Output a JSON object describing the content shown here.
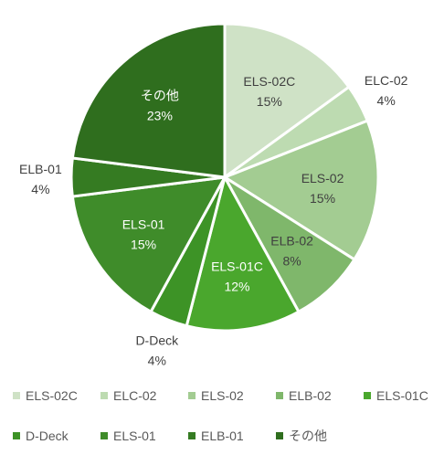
{
  "chart_data": {
    "type": "pie",
    "title": "",
    "series": [
      {
        "name": "ELS-02C",
        "value": 15,
        "label": "15%",
        "color": "#cfe2c6"
      },
      {
        "name": "ELC-02",
        "value": 4,
        "label": "4%",
        "color": "#bddbb1"
      },
      {
        "name": "ELS-02",
        "value": 15,
        "label": "15%",
        "color": "#a3cc92"
      },
      {
        "name": "ELB-02",
        "value": 8,
        "label": "8%",
        "color": "#7fb76b"
      },
      {
        "name": "ELS-01C",
        "value": 12,
        "label": "12%",
        "color": "#4aa72d"
      },
      {
        "name": "D-Deck",
        "value": 4,
        "label": "4%",
        "color": "#3d9326"
      },
      {
        "name": "ELS-01",
        "value": 15,
        "label": "15%",
        "color": "#3f8c2a"
      },
      {
        "name": "ELB-01",
        "value": 4,
        "label": "4%",
        "color": "#357b22"
      },
      {
        "name": "その他",
        "value": 23,
        "label": "23%",
        "color": "#2f6e1e"
      }
    ],
    "legend_position": "bottom"
  }
}
